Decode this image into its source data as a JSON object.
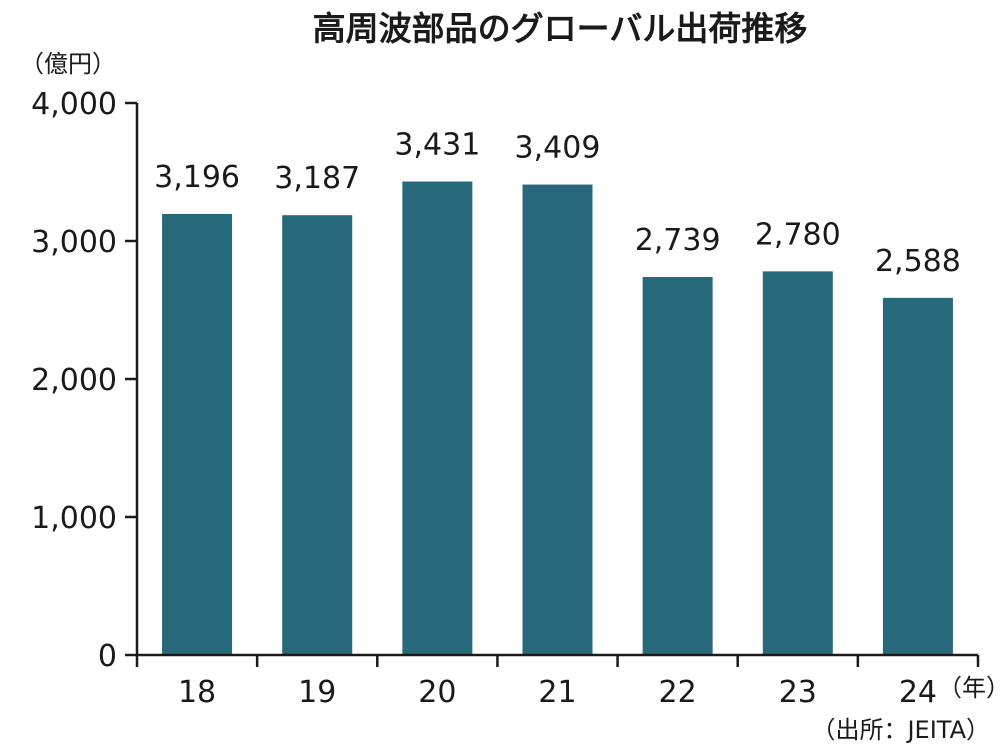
{
  "chart_data": {
    "type": "bar",
    "title": "高周波部品のグローバル出荷推移",
    "ylabel": "（億円）",
    "xlabel": "（年）",
    "source": "（出所：JEITA）",
    "categories": [
      "18",
      "19",
      "20",
      "21",
      "22",
      "23",
      "24"
    ],
    "values": [
      3196,
      3187,
      3431,
      3409,
      2739,
      2780,
      2588
    ],
    "value_labels": [
      "3,196",
      "3,187",
      "3,431",
      "3,409",
      "2,739",
      "2,780",
      "2,588"
    ],
    "ylim": [
      0,
      4000
    ],
    "yticks": [
      0,
      1000,
      2000,
      3000,
      4000
    ],
    "ytick_labels": [
      "0",
      "1,000",
      "2,000",
      "3,000",
      "4,000"
    ],
    "bar_color": "#27687a",
    "grid": false
  }
}
